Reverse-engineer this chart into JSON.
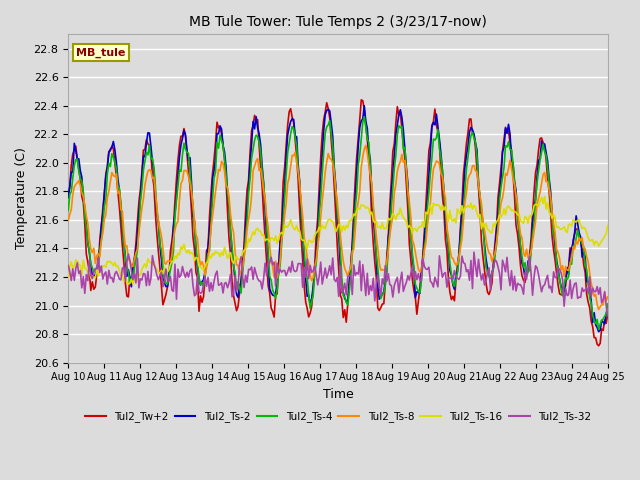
{
  "title": "MB Tule Tower: Tule Temps 2 (3/23/17-now)",
  "xlabel": "Time",
  "ylabel": "Temperature (C)",
  "ylim": [
    20.6,
    22.9
  ],
  "xlim": [
    0,
    15
  ],
  "background_color": "#dcdcdc",
  "plot_bg_color": "#dcdcdc",
  "grid_color": "#ffffff",
  "x_tick_labels": [
    "Aug 10",
    "Aug 11",
    "Aug 12",
    "Aug 13",
    "Aug 14",
    "Aug 15",
    "Aug 16",
    "Aug 17",
    "Aug 18",
    "Aug 19",
    "Aug 20",
    "Aug 21",
    "Aug 22",
    "Aug 23",
    "Aug 24",
    "Aug 25"
  ],
  "series": {
    "Tul2_Tw+2": {
      "color": "#cc0000",
      "lw": 1.2
    },
    "Tul2_Ts-2": {
      "color": "#0000cc",
      "lw": 1.2
    },
    "Tul2_Ts-4": {
      "color": "#00bb00",
      "lw": 1.2
    },
    "Tul2_Ts-8": {
      "color": "#ff8800",
      "lw": 1.2
    },
    "Tul2_Ts-16": {
      "color": "#dddd00",
      "lw": 1.2
    },
    "Tul2_Ts-32": {
      "color": "#aa44aa",
      "lw": 1.2
    }
  },
  "station_label": "MB_tule",
  "station_label_color": "#880000",
  "station_box_color": "#ffffcc",
  "station_box_edge": "#999900"
}
